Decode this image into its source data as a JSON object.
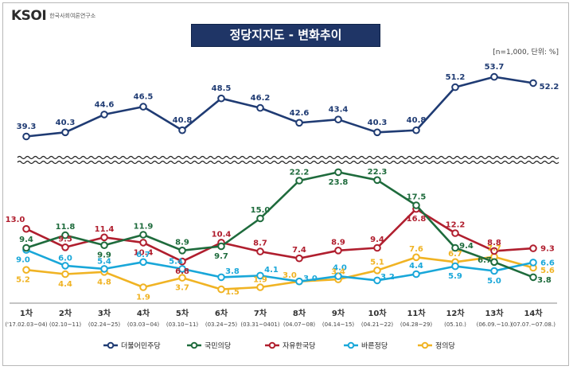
{
  "header": {
    "logo_mark": "KSOI",
    "logo_text": "한국사회여론연구소"
  },
  "unit_note": "[n=1,000, 단위: %]",
  "chart_data": {
    "type": "line",
    "title": "정당지지도 - 변화추이",
    "categories": [
      "1차",
      "2차",
      "3차",
      "4차",
      "5차",
      "6차",
      "7차",
      "8차",
      "9차",
      "10차",
      "11차",
      "12차",
      "13차",
      "14차"
    ],
    "dates": [
      "('17.02.03~04)",
      "(02.10~11)",
      "(02.24~25)",
      "(03.03~04)",
      "(03.10~11)",
      "(03.24~25)",
      "(03.31~0401)",
      "(04.07~08)",
      "(04.14~15)",
      "(04.21~22)",
      "(04.28~29)",
      "(05.10.)",
      "(06.09.~10.)",
      "(07.07.~07.08.)"
    ],
    "axis_break": true,
    "legend_position": "bottom",
    "series": [
      {
        "name": "더불어민주당",
        "color": "#1f3b73",
        "values": [
          39.3,
          40.3,
          44.6,
          46.5,
          40.8,
          48.5,
          46.2,
          42.6,
          43.4,
          40.3,
          40.8,
          51.2,
          53.7,
          52.2
        ]
      },
      {
        "name": "국민의당",
        "color": "#1e6b3c",
        "values": [
          9.4,
          11.8,
          9.9,
          11.9,
          8.9,
          9.7,
          15.0,
          22.2,
          23.8,
          22.3,
          17.5,
          9.4,
          6.7,
          3.8
        ]
      },
      {
        "name": "자유한국당",
        "color": "#b01e2e",
        "values": [
          13.0,
          9.5,
          11.4,
          10.4,
          6.8,
          10.4,
          8.7,
          7.4,
          8.9,
          9.4,
          16.8,
          12.2,
          8.8,
          9.3
        ]
      },
      {
        "name": "바른정당",
        "color": "#19a7d9",
        "values": [
          9.0,
          6.0,
          5.4,
          6.7,
          5.4,
          3.8,
          4.1,
          3.0,
          4.0,
          3.2,
          4.4,
          5.9,
          5.0,
          6.6
        ]
      },
      {
        "name": "정의당",
        "color": "#f0b323",
        "values": [
          5.2,
          4.4,
          4.8,
          1.9,
          3.7,
          1.5,
          1.9,
          3.0,
          3.4,
          5.1,
          7.6,
          6.7,
          7.7,
          5.6
        ]
      }
    ]
  }
}
